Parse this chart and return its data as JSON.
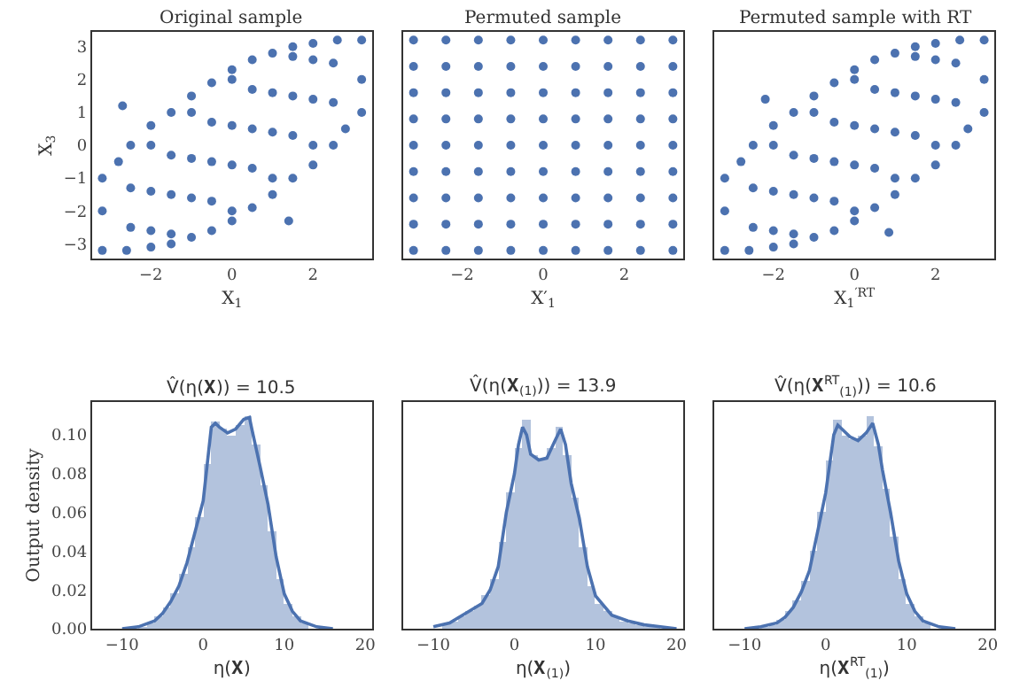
{
  "chart_data": [
    {
      "type": "scatter",
      "title": "Original sample",
      "xlabel": "X$_{1}$",
      "ylabel": "X$_{3}$",
      "marker": "circle",
      "xlim": [
        -3.45,
        3.45
      ],
      "ylim": [
        -3.45,
        3.45
      ],
      "xticks": [
        -2,
        0,
        2
      ],
      "yticks": [
        -3,
        -2,
        -1,
        0,
        1,
        2,
        3
      ],
      "series": [
        {
          "color": "#4c72b0",
          "x": [
            -3.2,
            -3.2,
            -3.2,
            -2.8,
            -2.5,
            -2,
            -1.5,
            -1,
            -0.5,
            0,
            0.5,
            1,
            1.5,
            2,
            2.6,
            3.2,
            3.2,
            3.2,
            2.8,
            2.5,
            2,
            1.5,
            1,
            0.5,
            0,
            -0.5,
            -1,
            -1.5,
            -2,
            -2.6,
            -2.5,
            -1.5,
            -0.5,
            0.5,
            1.5,
            2.5,
            -2.5,
            -1.5,
            -0.5,
            0.5,
            1.5,
            -1.5,
            -0.5,
            0.5,
            1.5,
            2.5,
            -2,
            -1,
            0,
            0,
            1,
            2,
            -2,
            -1,
            0,
            1,
            2,
            -2,
            -1,
            0,
            1,
            2,
            -2.7,
            1.4
          ],
          "values": [
            -3.2,
            -2,
            -1,
            -0.5,
            0,
            0.6,
            1.0,
            1.5,
            1.9,
            2.3,
            2.6,
            2.8,
            3.0,
            3.1,
            3.2,
            3.2,
            2,
            1,
            0.5,
            0,
            -0.6,
            -1.0,
            -1.5,
            -1.9,
            -2.3,
            -2.6,
            -2.8,
            -3.0,
            -3.1,
            -3.2,
            -2.5,
            -1.5,
            -0.5,
            0.5,
            1.5,
            2.5,
            -1.3,
            -0.3,
            0.7,
            1.7,
            2.7,
            -2.7,
            -1.7,
            -0.7,
            0.3,
            1.3,
            0,
            1,
            2,
            -2,
            -1,
            0,
            -1.4,
            -0.4,
            0.6,
            1.6,
            2.6,
            -2.6,
            -1.6,
            -0.6,
            0.4,
            1.4,
            1.2,
            -2.3
          ]
        }
      ]
    },
    {
      "type": "scatter",
      "title": "Permuted sample",
      "xlabel": "X′$_{1}$",
      "marker": "circle",
      "tick_labels": "x",
      "xlim": [
        -3.45,
        3.45
      ],
      "ylim": [
        -3.45,
        3.45
      ],
      "xticks": [
        -2,
        0,
        2
      ],
      "series": [
        {
          "color": "#4c72b0",
          "x": [
            -3.2,
            -2.4,
            -1.6,
            -0.8,
            0,
            0.8,
            1.6,
            2.4,
            3.2,
            -3.2,
            -2.4,
            -1.6,
            -0.8,
            0,
            0.8,
            1.6,
            2.4,
            3.2,
            -3.2,
            -2.4,
            -1.6,
            -0.8,
            0,
            0.8,
            1.6,
            2.4,
            3.2,
            -3.2,
            -2.4,
            -1.6,
            -0.8,
            0,
            0.8,
            1.6,
            2.4,
            3.2,
            -3.2,
            -2.4,
            -1.6,
            -0.8,
            0,
            0.8,
            1.6,
            2.4,
            3.2,
            -3.2,
            -2.4,
            -1.6,
            -0.8,
            0,
            0.8,
            1.6,
            2.4,
            3.2,
            -3.2,
            -2.4,
            -1.6,
            -0.8,
            0,
            0.8,
            1.6,
            2.4,
            3.2,
            -3.2,
            -2.4,
            -1.6,
            -0.8,
            0,
            0.8,
            1.6,
            2.4,
            3.2,
            -3.2,
            -2.4,
            -1.6,
            -0.8,
            0,
            0.8,
            1.6,
            2.4,
            3.2
          ],
          "values": [
            -3.2,
            -3.2,
            -3.2,
            -3.2,
            -3.2,
            -3.2,
            -3.2,
            -3.2,
            -3.2,
            -2.4,
            -2.4,
            -2.4,
            -2.4,
            -2.4,
            -2.4,
            -2.4,
            -2.4,
            -2.4,
            -1.6,
            -1.6,
            -1.6,
            -1.6,
            -1.6,
            -1.6,
            -1.6,
            -1.6,
            -1.6,
            -0.8,
            -0.8,
            -0.8,
            -0.8,
            -0.8,
            -0.8,
            -0.8,
            -0.8,
            -0.8,
            0,
            0,
            0,
            0,
            0,
            0,
            0,
            0,
            0,
            0.8,
            0.8,
            0.8,
            0.8,
            0.8,
            0.8,
            0.8,
            0.8,
            0.8,
            1.6,
            1.6,
            1.6,
            1.6,
            1.6,
            1.6,
            1.6,
            1.6,
            1.6,
            2.4,
            2.4,
            2.4,
            2.4,
            2.4,
            2.4,
            2.4,
            2.4,
            2.4,
            3.2,
            3.2,
            3.2,
            3.2,
            3.2,
            3.2,
            3.2,
            3.2,
            3.2
          ]
        }
      ]
    },
    {
      "type": "scatter",
      "title": "Permuted sample with RT",
      "xlabel": "X$_{1}$$^{′RT}$",
      "marker": "circle",
      "tick_labels": "x",
      "xlim": [
        -3.45,
        3.45
      ],
      "ylim": [
        -3.45,
        3.45
      ],
      "xticks": [
        -2,
        0,
        2
      ],
      "series": [
        {
          "color": "#4c72b0",
          "x": [
            -3.2,
            -3.2,
            -3.2,
            -2.8,
            -2.5,
            -2,
            -1.5,
            -1,
            -0.5,
            0,
            0.5,
            1,
            1.5,
            2,
            2.6,
            3.2,
            3.2,
            3.2,
            2.8,
            2.5,
            2,
            1.5,
            1,
            0.5,
            0,
            -0.5,
            -1,
            -1.5,
            -2,
            -2.6,
            -2.5,
            -1.5,
            -0.5,
            0.5,
            1.5,
            2.5,
            -2.5,
            -1.5,
            -0.5,
            0.5,
            1.5,
            -1.5,
            -0.5,
            0.5,
            1.5,
            2.5,
            -2,
            -1,
            0,
            0,
            1,
            2,
            -2,
            -1,
            0,
            1,
            2,
            -2,
            -1,
            0,
            1,
            2,
            -2.2,
            0.85
          ],
          "values": [
            -3.2,
            -2,
            -1,
            -0.5,
            0,
            0.6,
            1.0,
            1.5,
            1.9,
            2.3,
            2.6,
            2.8,
            3.0,
            3.1,
            3.2,
            3.2,
            2,
            1,
            0.5,
            0,
            -0.6,
            -1.0,
            -1.5,
            -1.9,
            -2.3,
            -2.6,
            -2.8,
            -3.0,
            -3.1,
            -3.2,
            -2.5,
            -1.5,
            -0.5,
            0.5,
            1.5,
            2.5,
            -1.3,
            -0.3,
            0.7,
            1.7,
            2.7,
            -2.7,
            -1.7,
            -0.7,
            0.3,
            1.3,
            0,
            1,
            2,
            -2,
            -1,
            0,
            -1.4,
            -0.4,
            0.6,
            1.6,
            2.6,
            -2.6,
            -1.6,
            -0.6,
            0.4,
            1.4,
            1.4,
            -2.65
          ]
        }
      ]
    },
    {
      "type": "histogram",
      "title": "V̂(η(𝐗)) = 10.5",
      "xlabel": "η(𝐗)",
      "ylabel": "Output density",
      "xlim": [
        -13.7,
        20.8
      ],
      "ylim": [
        0,
        0.117
      ],
      "xticks": [
        -10,
        0,
        10,
        20
      ],
      "yticks": [
        {
          "value": 0,
          "label": "0.00"
        },
        {
          "value": 0.02,
          "label": "0.02"
        },
        {
          "value": 0.04,
          "label": "0.04"
        },
        {
          "value": 0.06,
          "label": "0.06"
        },
        {
          "value": 0.08,
          "label": "0.08"
        },
        {
          "value": 0.1,
          "label": "0.10"
        }
      ],
      "color": "#b3c3dd",
      "bins": [
        -8,
        -7,
        -6,
        -5,
        -4,
        -3,
        -2,
        -1,
        0,
        1,
        2,
        3,
        4,
        5,
        6,
        7,
        8,
        9,
        10,
        11,
        12,
        13,
        14,
        15,
        16
      ],
      "values": [
        0.001,
        0.003,
        0.006,
        0.011,
        0.018,
        0.028,
        0.042,
        0.058,
        0.085,
        0.107,
        0.103,
        0.1,
        0.105,
        0.11,
        0.095,
        0.074,
        0.05,
        0.026,
        0.013,
        0.006,
        0.003,
        null,
        null,
        0.0
      ],
      "series": [
        {
          "type": "line",
          "color": "#4c72b0",
          "x": [
            -10,
            -8,
            -6,
            -5,
            -4,
            -3,
            -2,
            -1,
            0,
            0.5,
            1,
            1.5,
            2,
            3,
            4,
            5,
            5.7,
            6,
            7,
            8,
            9,
            10,
            11,
            12,
            14,
            16
          ],
          "values": [
            0,
            0.001,
            0.004,
            0.008,
            0.014,
            0.022,
            0.034,
            0.05,
            0.066,
            0.085,
            0.104,
            0.106,
            0.104,
            0.101,
            0.103,
            0.108,
            0.109,
            0.103,
            0.084,
            0.064,
            0.037,
            0.018,
            0.009,
            0.004,
            0.001,
            0
          ]
        }
      ]
    },
    {
      "type": "histogram",
      "title": "V̂(η(𝐗$_{(1)}$)) = 13.9",
      "xlabel": "η(𝐗$_{(1)}$)",
      "tick_labels": "x",
      "xlim": [
        -13.7,
        20.8
      ],
      "ylim": [
        0,
        0.117
      ],
      "xticks": [
        -10,
        0,
        10,
        20
      ],
      "color": "#b3c3dd",
      "bins": [
        -10,
        -9,
        -8,
        -7,
        -6,
        -5,
        -4,
        -3,
        -2,
        -1,
        0,
        1,
        2,
        3,
        4,
        5,
        6,
        7,
        8,
        9,
        10,
        11,
        12,
        13,
        14,
        15,
        16,
        17,
        18
      ],
      "values": [
        null,
        0.003,
        0.004,
        0.006,
        0.009,
        0.012,
        0.017,
        0.026,
        0.045,
        0.07,
        0.093,
        0.108,
        0.09,
        0.088,
        0.093,
        0.104,
        0.09,
        0.068,
        0.042,
        0.022,
        0.013,
        0.009,
        0.006,
        0.004,
        0.003,
        0.002,
        0.001,
        0.001
      ],
      "series": [
        {
          "type": "line",
          "color": "#4c72b0",
          "x": [
            -10,
            -8,
            -6,
            -4,
            -3,
            -2,
            -1,
            0,
            0.5,
            1,
            1.5,
            2,
            3,
            4,
            5,
            5.7,
            6.3,
            7,
            8,
            9,
            10,
            12,
            14,
            16,
            18,
            20
          ],
          "values": [
            0.001,
            0.003,
            0.008,
            0.013,
            0.02,
            0.032,
            0.06,
            0.08,
            0.095,
            0.104,
            0.1,
            0.09,
            0.087,
            0.088,
            0.097,
            0.103,
            0.095,
            0.075,
            0.057,
            0.032,
            0.017,
            0.007,
            0.004,
            0.002,
            0.001,
            0
          ]
        }
      ]
    },
    {
      "type": "histogram",
      "title": "V̂(η(𝐗$^{RT}$$_{(1)}$)) = 10.6",
      "xlabel": "η(𝐗$^{RT}$$_{(1)}$)",
      "tick_labels": "x",
      "xlim": [
        -13.7,
        20.8
      ],
      "ylim": [
        0,
        0.117
      ],
      "xticks": [
        -10,
        0,
        10,
        20
      ],
      "color": "#b3c3dd",
      "bins": [
        -8,
        -7,
        -6,
        -5,
        -4,
        -3,
        -2,
        -1,
        0,
        1,
        2,
        3,
        4,
        5,
        6,
        7,
        8,
        9,
        10,
        11,
        12,
        13,
        14,
        15,
        16
      ],
      "values": [
        0.001,
        0.002,
        0.005,
        0.009,
        0.015,
        0.025,
        0.04,
        0.06,
        0.087,
        0.108,
        0.1,
        0.098,
        0.1,
        0.11,
        0.094,
        0.072,
        0.048,
        0.026,
        0.013,
        0.006,
        0.003,
        null,
        null,
        0.0
      ],
      "series": [
        {
          "type": "line",
          "color": "#4c72b0",
          "x": [
            -10,
            -8,
            -6,
            -5,
            -4,
            -3,
            -2,
            -1,
            0,
            0.5,
            1,
            1.5,
            2,
            3,
            4,
            5,
            5.8,
            6.5,
            7,
            8,
            9,
            10,
            11,
            12,
            14,
            16
          ],
          "values": [
            0,
            0.001,
            0.003,
            0.006,
            0.011,
            0.019,
            0.03,
            0.05,
            0.07,
            0.085,
            0.1,
            0.105,
            0.103,
            0.099,
            0.097,
            0.101,
            0.106,
            0.095,
            0.082,
            0.06,
            0.035,
            0.018,
            0.009,
            0.004,
            0.001,
            0
          ]
        }
      ]
    }
  ]
}
